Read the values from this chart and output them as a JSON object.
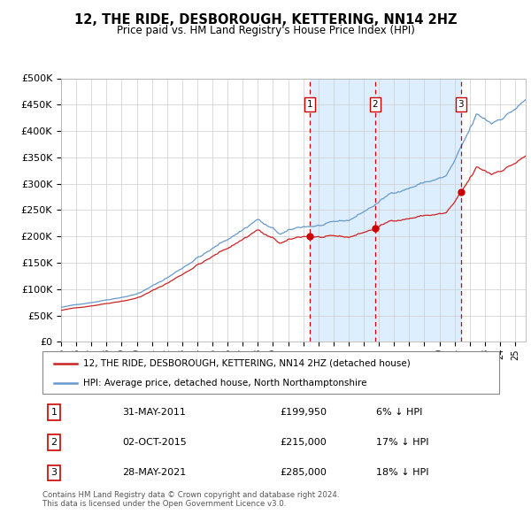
{
  "title": "12, THE RIDE, DESBOROUGH, KETTERING, NN14 2HZ",
  "subtitle": "Price paid vs. HM Land Registry's House Price Index (HPI)",
  "legend_line1": "12, THE RIDE, DESBOROUGH, KETTERING, NN14 2HZ (detached house)",
  "legend_line2": "HPI: Average price, detached house, North Northamptonshire",
  "sale_dates": [
    2011.42,
    2015.75,
    2021.42
  ],
  "sale_prices": [
    199950,
    215000,
    285000
  ],
  "sale_labels": [
    "1",
    "2",
    "3"
  ],
  "table_data": [
    [
      "1",
      "31-MAY-2011",
      "£199,950",
      "6% ↓ HPI"
    ],
    [
      "2",
      "02-OCT-2015",
      "£215,000",
      "17% ↓ HPI"
    ],
    [
      "3",
      "28-MAY-2021",
      "£285,000",
      "18% ↓ HPI"
    ]
  ],
  "footnote1": "Contains HM Land Registry data © Crown copyright and database right 2024.",
  "footnote2": "This data is licensed under the Open Government Licence v3.0.",
  "hpi_color": "#6699cc",
  "price_color": "#cc2222",
  "sale_marker_color": "#cc0000",
  "vline_color": "#cc0000",
  "shade_color": "#ddeeff",
  "ylim": [
    0,
    500000
  ],
  "yticks": [
    0,
    50000,
    100000,
    150000,
    200000,
    250000,
    300000,
    350000,
    400000,
    450000,
    500000
  ],
  "xmin": 1995.0,
  "xmax": 2025.7
}
